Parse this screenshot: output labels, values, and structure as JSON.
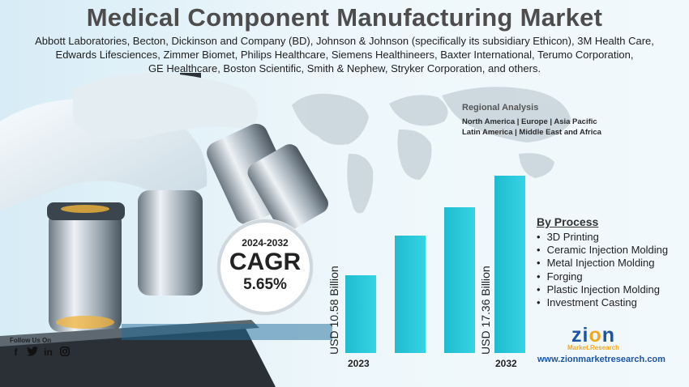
{
  "title": "Medical Component Manufacturing Market",
  "companies": [
    "Abbott Laboratories, Becton, Dickinson and Company (BD), Johnson & Johnson (specifically its subsidiary Ethicon), 3M Health Care,",
    "Edwards Lifesciences, Zimmer Biomet, Philips Healthcare, Siemens Healthineers, Baxter International, Terumo Corporation,",
    "GE Healthcare, Boston Scientific, Smith & Nephew, Stryker Corporation, and others."
  ],
  "regional": {
    "title": "Regional Analysis",
    "line1": "North America | Europe | Asia Pacific",
    "line2": "Latin America | Middle East and Africa"
  },
  "cagr": {
    "years": "2024-2032",
    "label": "CAGR",
    "value": "5.65%"
  },
  "chart": {
    "start_label": "USD 10.58 Billion",
    "end_label": "USD 17.36 Billion",
    "start_year": "2023",
    "end_year": "2032",
    "bar_color": "#1fbcd0"
  },
  "process": {
    "title": "By Process",
    "items": [
      "3D Printing",
      "Ceramic Injection Molding",
      "Metal Injection Molding",
      "Forging",
      "Plastic Injection Molding",
      "Investment Casting"
    ]
  },
  "follow": "Follow Us On",
  "social_icons": [
    "facebook-icon",
    "twitter-icon",
    "linkedin-icon",
    "instagram-icon"
  ],
  "logo": {
    "main_a": "zi",
    "main_o": "o",
    "main_b": "n",
    "sub": "Market.Research"
  },
  "website": "www.zionmarketresearch.com"
}
